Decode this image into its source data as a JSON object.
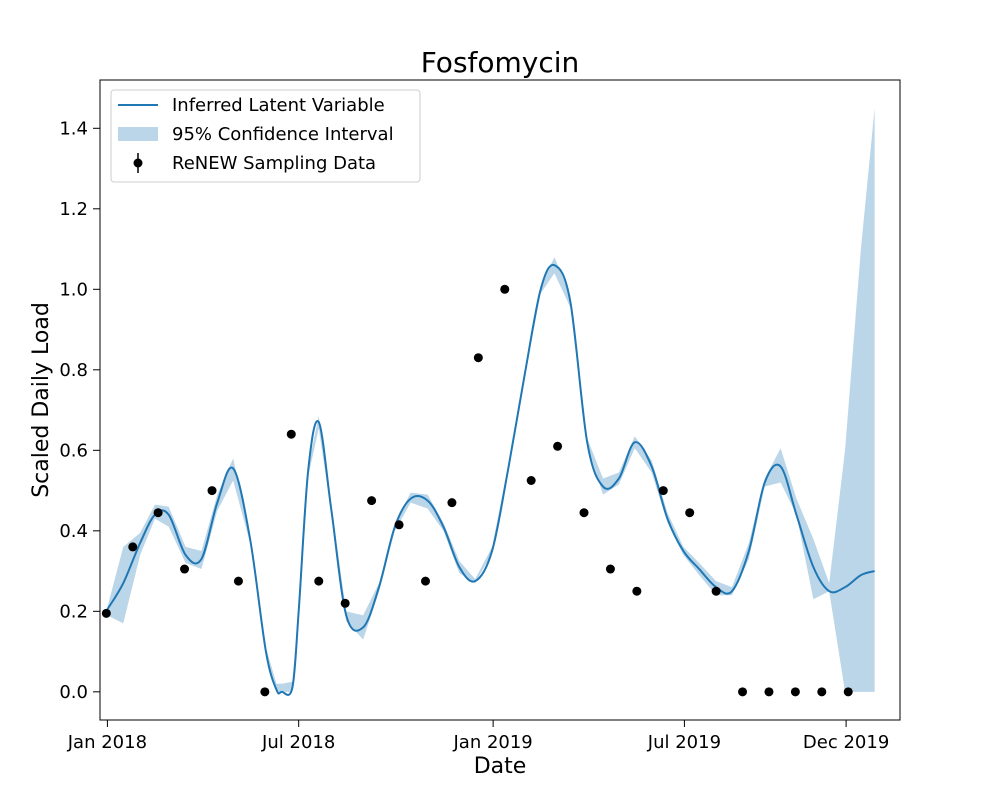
{
  "chart_data": {
    "type": "line",
    "title": "Fosfomycin",
    "xlabel": "Date",
    "ylabel": "Scaled Daily Load",
    "xlim": [
      "2017-12-25",
      "2020-01-21"
    ],
    "ylim": [
      -0.07,
      1.52
    ],
    "grid": false,
    "legend_placement": "top-left",
    "x_ticks": [
      {
        "date": "2018-01-01",
        "label": "Jan 2018"
      },
      {
        "date": "2018-07-01",
        "label": "Jul 2018"
      },
      {
        "date": "2019-01-01",
        "label": "Jan 2019"
      },
      {
        "date": "2019-07-01",
        "label": "Jul 2019"
      },
      {
        "date": "2019-12-01",
        "label": "Dec 2019"
      }
    ],
    "y_ticks": [
      {
        "value": 0.0,
        "label": "0.0"
      },
      {
        "value": 0.2,
        "label": "0.2"
      },
      {
        "value": 0.4,
        "label": "0.4"
      },
      {
        "value": 0.6,
        "label": "0.6"
      },
      {
        "value": 0.8,
        "label": "0.8"
      },
      {
        "value": 1.0,
        "label": "1.0"
      },
      {
        "value": 1.2,
        "label": "1.2"
      },
      {
        "value": 1.4,
        "label": "1.4"
      }
    ],
    "series": [
      {
        "name": "Inferred Latent Variable",
        "kind": "line",
        "color": "#1f77b4",
        "x": [
          "2018-01-01",
          "2018-01-16",
          "2018-02-01",
          "2018-02-15",
          "2018-02-28",
          "2018-03-16",
          "2018-03-31",
          "2018-04-15",
          "2018-04-30",
          "2018-05-16",
          "2018-05-31",
          "2018-06-10",
          "2018-06-15",
          "2018-06-25",
          "2018-07-01",
          "2018-07-10",
          "2018-07-20",
          "2018-08-01",
          "2018-08-15",
          "2018-08-31",
          "2018-09-15",
          "2018-09-30",
          "2018-10-15",
          "2018-10-31",
          "2018-11-15",
          "2018-11-30",
          "2018-12-15",
          "2018-12-31",
          "2019-01-15",
          "2019-01-31",
          "2019-02-15",
          "2019-02-28",
          "2019-03-15",
          "2019-03-31",
          "2019-04-15",
          "2019-04-30",
          "2019-05-15",
          "2019-05-31",
          "2019-06-15",
          "2019-06-30",
          "2019-07-15",
          "2019-07-31",
          "2019-08-15",
          "2019-08-31",
          "2019-09-15",
          "2019-09-30",
          "2019-10-15",
          "2019-10-31",
          "2019-11-15",
          "2019-11-30",
          "2019-12-15",
          "2019-12-28"
        ],
        "y": [
          0.205,
          0.27,
          0.37,
          0.44,
          0.44,
          0.34,
          0.33,
          0.47,
          0.555,
          0.38,
          0.1,
          0.005,
          0.0,
          0.01,
          0.2,
          0.55,
          0.67,
          0.45,
          0.19,
          0.16,
          0.26,
          0.41,
          0.48,
          0.475,
          0.41,
          0.31,
          0.275,
          0.35,
          0.55,
          0.79,
          1.0,
          1.06,
          0.97,
          0.62,
          0.51,
          0.53,
          0.62,
          0.56,
          0.43,
          0.35,
          0.305,
          0.26,
          0.25,
          0.35,
          0.52,
          0.56,
          0.44,
          0.31,
          0.25,
          0.26,
          0.29,
          0.3
        ]
      },
      {
        "name": "95% Confidence Interval",
        "kind": "band",
        "color": "#1f77b4",
        "x": [
          "2018-01-01",
          "2018-01-16",
          "2018-02-01",
          "2018-02-15",
          "2018-02-28",
          "2018-03-16",
          "2018-03-31",
          "2018-04-15",
          "2018-04-30",
          "2018-05-16",
          "2018-05-31",
          "2018-06-10",
          "2018-06-15",
          "2018-06-25",
          "2018-07-01",
          "2018-07-10",
          "2018-07-20",
          "2018-08-01",
          "2018-08-15",
          "2018-08-31",
          "2018-09-15",
          "2018-09-30",
          "2018-10-15",
          "2018-10-31",
          "2018-11-15",
          "2018-11-30",
          "2018-12-15",
          "2018-12-31",
          "2019-01-15",
          "2019-01-31",
          "2019-02-15",
          "2019-02-28",
          "2019-03-15",
          "2019-03-31",
          "2019-04-15",
          "2019-04-30",
          "2019-05-15",
          "2019-05-31",
          "2019-06-15",
          "2019-06-30",
          "2019-07-15",
          "2019-07-31",
          "2019-08-15",
          "2019-08-31",
          "2019-09-15",
          "2019-09-30",
          "2019-10-15",
          "2019-10-31",
          "2019-11-15",
          "2019-11-30",
          "2019-12-15",
          "2019-12-28"
        ],
        "lower": [
          0.19,
          0.17,
          0.34,
          0.43,
          0.41,
          0.32,
          0.305,
          0.45,
          0.525,
          0.37,
          0.09,
          0.0,
          0.0,
          0.0,
          0.19,
          0.535,
          0.655,
          0.44,
          0.175,
          0.13,
          0.25,
          0.4,
          0.47,
          0.455,
          0.4,
          0.295,
          0.27,
          0.345,
          0.54,
          0.785,
          0.99,
          1.04,
          0.955,
          0.61,
          0.49,
          0.515,
          0.605,
          0.545,
          0.42,
          0.34,
          0.29,
          0.24,
          0.24,
          0.33,
          0.51,
          0.52,
          0.44,
          0.23,
          0.25,
          0.0,
          0.0,
          0.0
        ],
        "upper": [
          0.21,
          0.36,
          0.395,
          0.465,
          0.46,
          0.36,
          0.35,
          0.49,
          0.58,
          0.39,
          0.11,
          0.02,
          0.02,
          0.025,
          0.21,
          0.56,
          0.685,
          0.46,
          0.2,
          0.19,
          0.27,
          0.42,
          0.495,
          0.49,
          0.42,
          0.325,
          0.28,
          0.36,
          0.56,
          0.8,
          1.01,
          1.08,
          0.985,
          0.63,
          0.53,
          0.545,
          0.635,
          0.575,
          0.445,
          0.36,
          0.32,
          0.275,
          0.26,
          0.37,
          0.53,
          0.605,
          0.48,
          0.38,
          0.27,
          0.6,
          1.1,
          1.45
        ]
      },
      {
        "name": "ReNEW Sampling Data",
        "kind": "points",
        "color": "#000000",
        "x": [
          "2017-12-31",
          "2018-01-25",
          "2018-02-18",
          "2018-03-15",
          "2018-04-10",
          "2018-05-05",
          "2018-05-30",
          "2018-06-24",
          "2018-07-20",
          "2018-08-14",
          "2018-09-08",
          "2018-10-04",
          "2018-10-29",
          "2018-11-23",
          "2018-12-18",
          "2019-01-12",
          "2019-02-06",
          "2019-03-03",
          "2019-03-28",
          "2019-04-22",
          "2019-05-17",
          "2019-06-11",
          "2019-07-06",
          "2019-07-31",
          "2019-08-25",
          "2019-09-19",
          "2019-10-14",
          "2019-11-08",
          "2019-12-03"
        ],
        "y": [
          0.195,
          0.36,
          0.445,
          0.305,
          0.5,
          0.275,
          0.0,
          0.64,
          0.275,
          0.22,
          0.475,
          0.415,
          0.275,
          0.47,
          0.83,
          1.0,
          0.525,
          0.61,
          0.445,
          0.305,
          0.25,
          0.5,
          0.445,
          0.25,
          0.0,
          0.0,
          0.0,
          0.0,
          0.0
        ]
      }
    ]
  }
}
